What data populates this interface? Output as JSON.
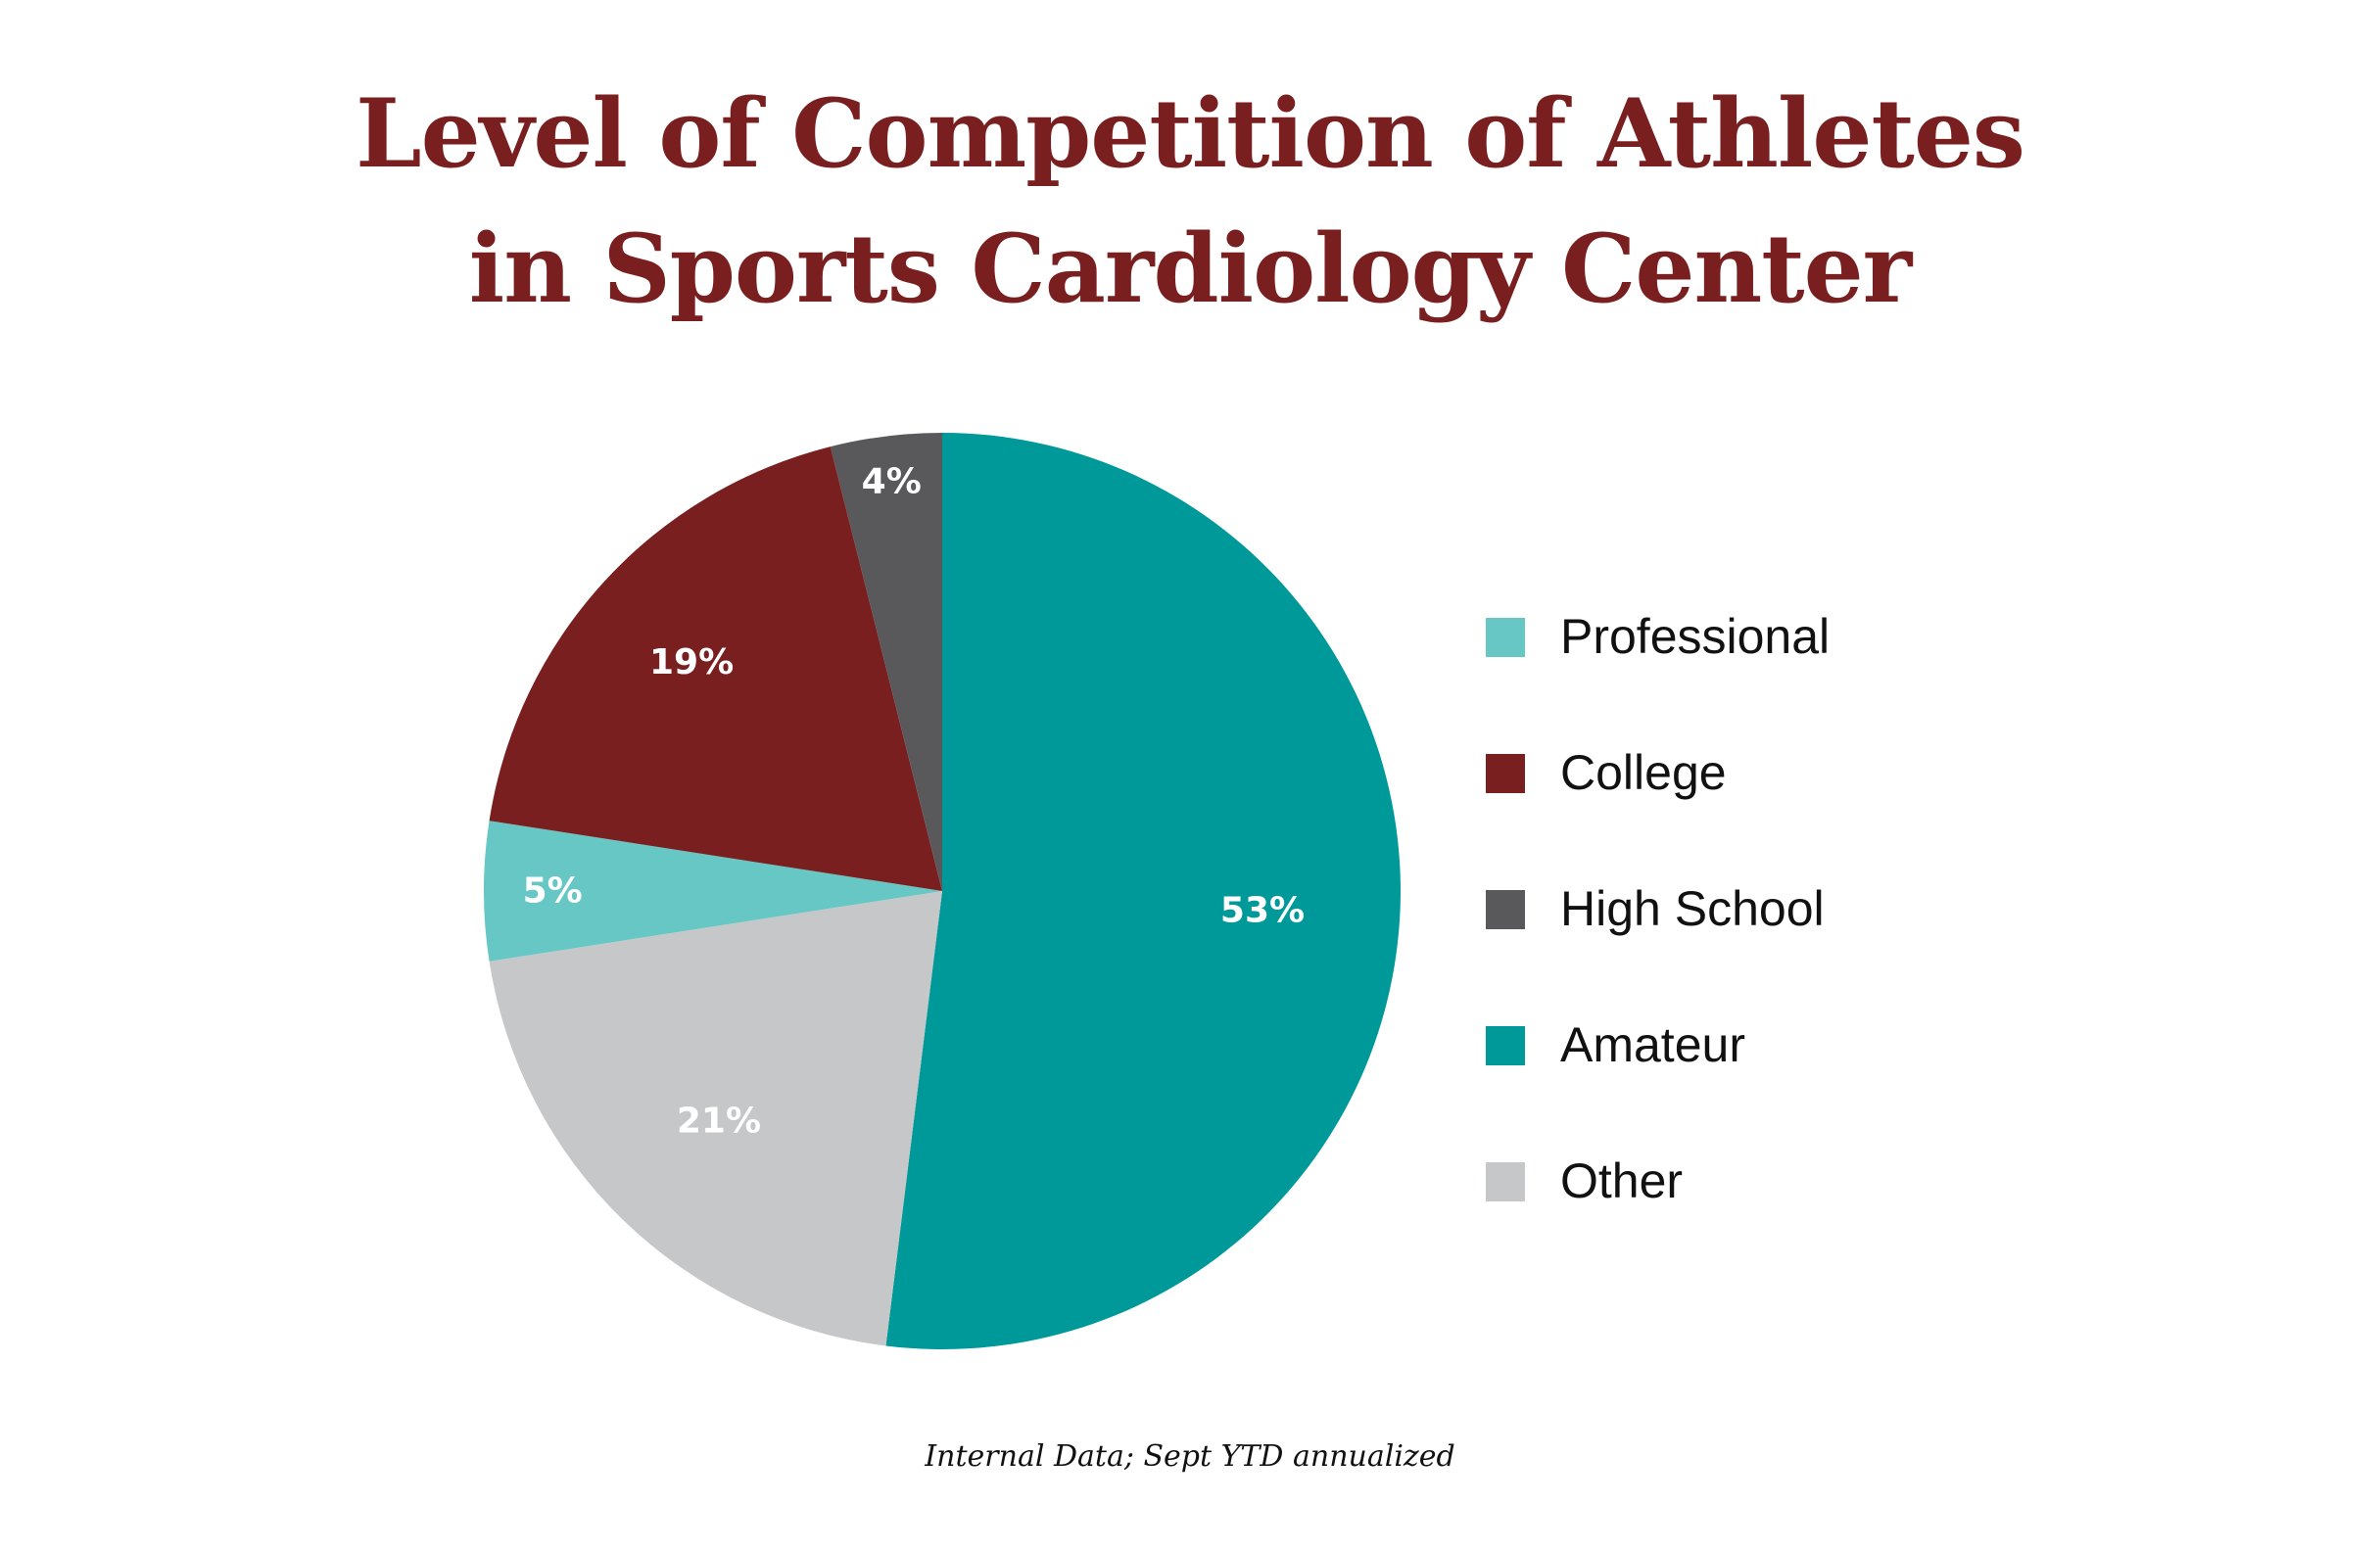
{
  "chart_data": {
    "type": "pie",
    "title_lines": [
      "Level of Competition of Athletes",
      "in Sports Cardiology Center"
    ],
    "start_angle_deg": 0,
    "direction": "clockwise",
    "slices": [
      {
        "label": "Amateur",
        "value": 53,
        "value_label": "53%",
        "color": "#00999a"
      },
      {
        "label": "Other",
        "value": 21,
        "value_label": "21%",
        "color": "#c6c7c9"
      },
      {
        "label": "Professional",
        "value": 5,
        "value_label": "5%",
        "color": "#66c7c5"
      },
      {
        "label": "College",
        "value": 19,
        "value_label": "19%",
        "color": "#7a1f1f"
      },
      {
        "label": "High School",
        "value": 4,
        "value_label": "4%",
        "color": "#59595b"
      }
    ],
    "legend": [
      {
        "label": "Professional",
        "color": "#66c7c5"
      },
      {
        "label": "College",
        "color": "#7a1f1f"
      },
      {
        "label": "High School",
        "color": "#59595b"
      },
      {
        "label": "Amateur",
        "color": "#00999a"
      },
      {
        "label": "Other",
        "color": "#c6c7c9"
      }
    ],
    "legend_position": "right",
    "source_note": "Internal Data; Sept YTD annualized"
  }
}
